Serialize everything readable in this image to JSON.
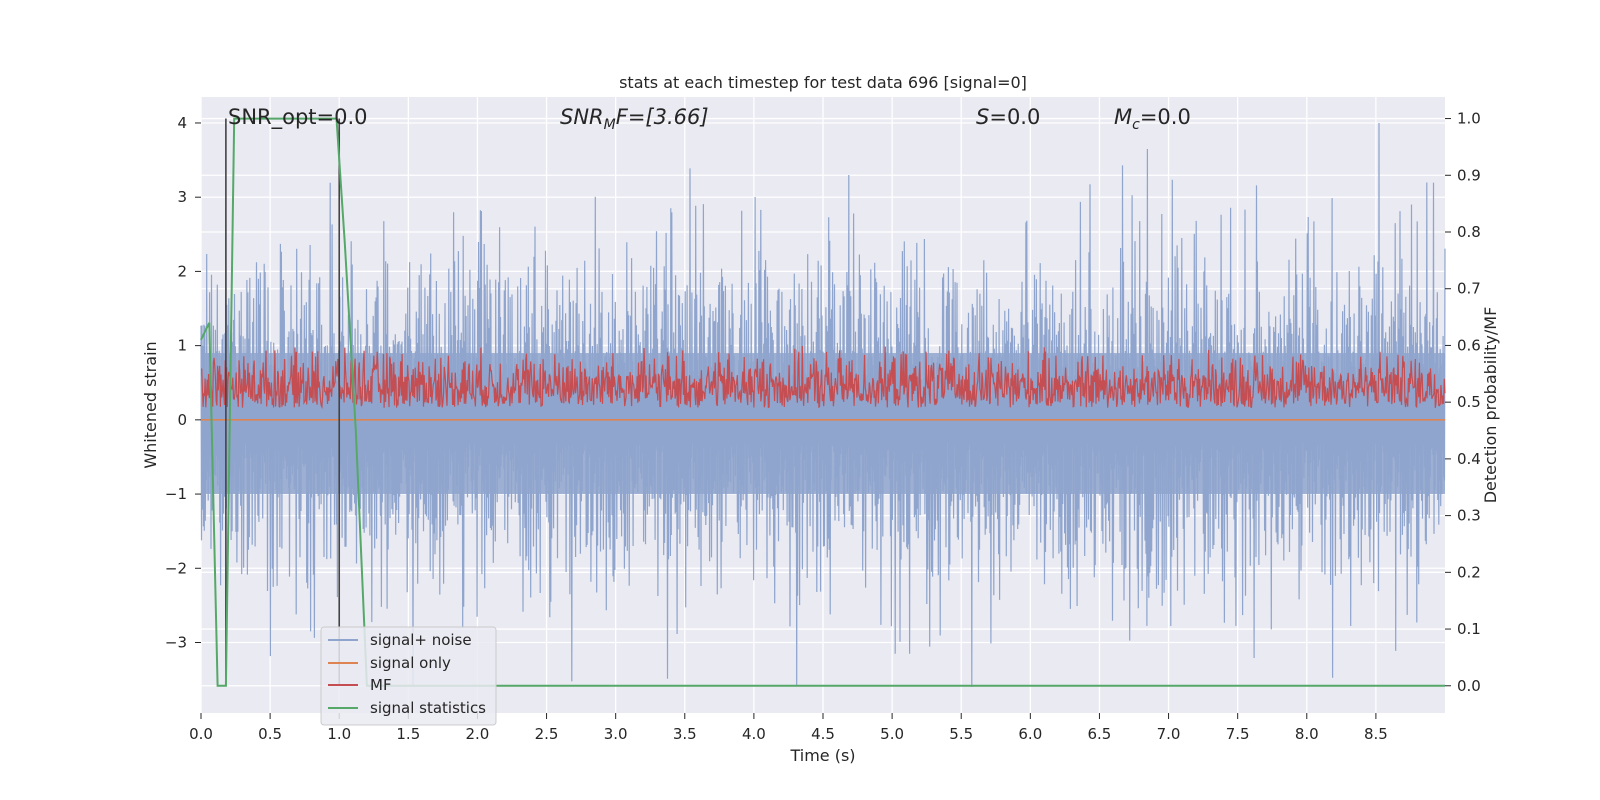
{
  "chart_data": {
    "type": "line",
    "title": "stats at each timestep for test data 696 [signal=0]",
    "xlabel": "Time (s)",
    "ylabel_left": "Whitened strain",
    "ylabel_right": "Detection probability/MF",
    "xlim": [
      0,
      9.0
    ],
    "ylim_left": [
      -3.95,
      4.35
    ],
    "ylim_right": [
      -0.048,
      1.038
    ],
    "x_ticks": [
      "0.0",
      "0.5",
      "1.0",
      "1.5",
      "2.0",
      "2.5",
      "3.0",
      "3.5",
      "4.0",
      "4.5",
      "5.0",
      "5.5",
      "6.0",
      "6.5",
      "7.0",
      "7.5",
      "8.0",
      "8.5"
    ],
    "y_ticks_left": [
      "4",
      "3",
      "2",
      "1",
      "0",
      "−1",
      "−2",
      "−3"
    ],
    "y_ticks_right": [
      "1.0",
      "0.9",
      "0.8",
      "0.7",
      "0.6",
      "0.5",
      "0.4",
      "0.3",
      "0.2",
      "0.1",
      "0.0"
    ],
    "grid": true,
    "legend_position": "lower-left",
    "annotations": {
      "snr_opt": "SNR_opt=0.0",
      "snr_mf_base": "SNR",
      "snr_mf_sub": "M",
      "snr_mf_rest": "F=[3.66]",
      "s_italic": "S",
      "s_rest": "=0.0",
      "mc_base": "M",
      "mc_sub": "c",
      "mc_rest": "=0.0"
    },
    "series": [
      {
        "name": "signal+ noise",
        "color": "#8fa5cd",
        "description_note": "whitened noisy strain, dense fluctuating trace roughly within -3.5 to 4",
        "envelope_upper_approx": 2.3,
        "envelope_lower_approx": -2.4,
        "peak_max": 4.0,
        "peak_min": -3.6
      },
      {
        "name": "signal only",
        "color": "#dd8452",
        "x": [
          0,
          9.0
        ],
        "y": [
          0.0,
          0.0
        ]
      },
      {
        "name": "MF",
        "color": "#c44e52",
        "axis": "right",
        "band_low": 0.49,
        "band_high": 0.6
      },
      {
        "name": "signal statistics",
        "color": "#55a868",
        "axis": "right",
        "x": [
          0.0,
          0.06,
          0.12,
          0.18,
          0.24,
          0.98,
          1.04,
          1.12,
          1.2,
          2.2,
          9.0
        ],
        "y": [
          0.61,
          0.64,
          0.0,
          0.0,
          1.0,
          1.0,
          0.78,
          0.45,
          0.0,
          0.0,
          0.0
        ]
      }
    ],
    "vertical_markers": {
      "color": "#444444",
      "x": [
        0.18,
        1.0
      ]
    }
  }
}
